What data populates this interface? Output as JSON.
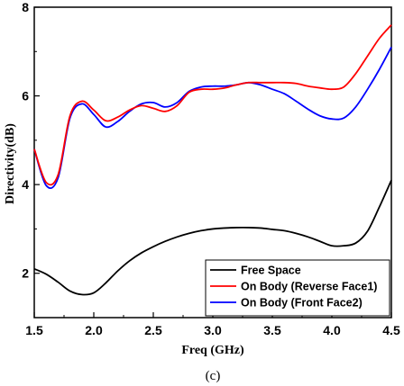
{
  "caption": "(c)",
  "chart_data": {
    "type": "line",
    "xlabel": "Freq (GHz)",
    "ylabel": "Directivity(dB)",
    "xlim": [
      1.5,
      4.5
    ],
    "ylim": [
      1,
      8
    ],
    "xticks": [
      "1.5",
      "2.0",
      "2.5",
      "3.0",
      "3.5",
      "4.0",
      "4.5"
    ],
    "yticks": [
      "2",
      "4",
      "6",
      "8"
    ],
    "grid": false,
    "legend_position": "bottom-right",
    "series": [
      {
        "name": "Free Space",
        "color": "#000000",
        "x": [
          1.5,
          1.6,
          1.7,
          1.8,
          1.9,
          2.0,
          2.1,
          2.2,
          2.3,
          2.4,
          2.5,
          2.6,
          2.7,
          2.8,
          2.9,
          3.0,
          3.1,
          3.2,
          3.3,
          3.4,
          3.5,
          3.6,
          3.7,
          3.8,
          3.9,
          4.0,
          4.1,
          4.2,
          4.3,
          4.4,
          4.5
        ],
        "y": [
          2.1,
          1.98,
          1.8,
          1.6,
          1.52,
          1.56,
          1.78,
          2.05,
          2.28,
          2.46,
          2.6,
          2.72,
          2.82,
          2.9,
          2.96,
          3.0,
          3.02,
          3.03,
          3.03,
          3.02,
          2.99,
          2.96,
          2.9,
          2.82,
          2.72,
          2.62,
          2.62,
          2.68,
          2.95,
          3.5,
          4.1
        ]
      },
      {
        "name": "On Body (Reverse Face1)",
        "color": "#ff0000",
        "x": [
          1.5,
          1.6,
          1.7,
          1.8,
          1.9,
          2.0,
          2.1,
          2.2,
          2.3,
          2.4,
          2.5,
          2.6,
          2.7,
          2.8,
          2.9,
          3.0,
          3.1,
          3.2,
          3.3,
          3.4,
          3.5,
          3.6,
          3.7,
          3.8,
          3.9,
          4.0,
          4.1,
          4.2,
          4.3,
          4.4,
          4.5
        ],
        "y": [
          4.8,
          4.05,
          4.22,
          5.55,
          5.88,
          5.68,
          5.44,
          5.52,
          5.68,
          5.78,
          5.72,
          5.65,
          5.78,
          6.08,
          6.15,
          6.15,
          6.18,
          6.25,
          6.3,
          6.3,
          6.3,
          6.3,
          6.28,
          6.22,
          6.18,
          6.15,
          6.2,
          6.5,
          6.9,
          7.3,
          7.6
        ]
      },
      {
        "name": "On Body (Front Face2)",
        "color": "#0000ff",
        "x": [
          1.5,
          1.6,
          1.7,
          1.8,
          1.9,
          2.0,
          2.1,
          2.2,
          2.3,
          2.4,
          2.5,
          2.6,
          2.7,
          2.8,
          2.9,
          3.0,
          3.1,
          3.2,
          3.3,
          3.4,
          3.5,
          3.6,
          3.7,
          3.8,
          3.9,
          4.0,
          4.1,
          4.2,
          4.3,
          4.4,
          4.5
        ],
        "y": [
          4.8,
          3.98,
          4.15,
          5.5,
          5.82,
          5.58,
          5.3,
          5.42,
          5.65,
          5.82,
          5.85,
          5.75,
          5.85,
          6.1,
          6.2,
          6.22,
          6.22,
          6.25,
          6.3,
          6.25,
          6.15,
          6.05,
          5.88,
          5.7,
          5.55,
          5.48,
          5.5,
          5.75,
          6.15,
          6.6,
          7.1
        ]
      }
    ]
  }
}
